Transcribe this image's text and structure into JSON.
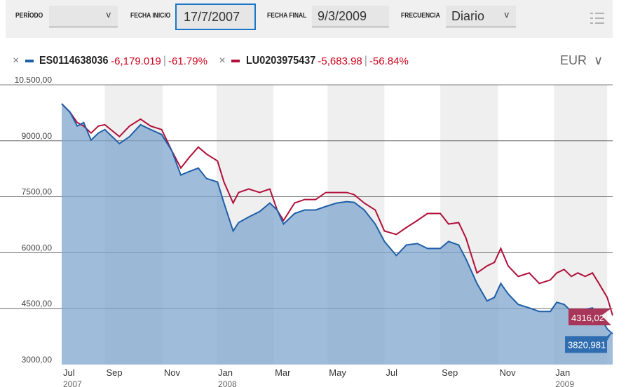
{
  "filters": {
    "periodo_label": "PERÍODO",
    "periodo_value": "",
    "fecha_inicio_label": "FECHA INICIO",
    "fecha_inicio_value": "17/7/2007",
    "fecha_final_label": "FECHA FINAL",
    "fecha_final_value": "9/3/2009",
    "frecuencia_label": "FRECUENCIA",
    "frecuencia_value": "Diario",
    "chevron": "v",
    "menu_icon": "list-icon"
  },
  "legend": [
    {
      "code": "ES0114638036",
      "change": "-6,179.019",
      "pct": "-61.79%",
      "color": "#1f5fa8"
    },
    {
      "code": "LU0203975437",
      "change": "-5,683.98",
      "pct": "-56.84%",
      "color": "#b0103a"
    }
  ],
  "legend_sep": "|",
  "remove": "×",
  "currency": {
    "value": "EUR",
    "chevron": "∨"
  },
  "chart_data": {
    "type": "line",
    "xlabel": "",
    "ylabel": "",
    "xlim": [
      0,
      601
    ],
    "ylim": [
      3000,
      10500
    ],
    "yticks": [
      {
        "v": 10500,
        "label": "10.500,00"
      },
      {
        "v": 9000,
        "label": "9000,00"
      },
      {
        "v": 7500,
        "label": "7500,00"
      },
      {
        "v": 6000,
        "label": "6000,00"
      },
      {
        "v": 4500,
        "label": "4500,00"
      },
      {
        "v": 3000,
        "label": "3000,00"
      }
    ],
    "xticks": [
      {
        "d": 0,
        "label": "Jul",
        "year": "2007"
      },
      {
        "d": 47,
        "label": "Sep"
      },
      {
        "d": 110,
        "label": "Nov"
      },
      {
        "d": 169,
        "label": "Jan",
        "year": "2008"
      },
      {
        "d": 231,
        "label": "Mar"
      },
      {
        "d": 290,
        "label": "May"
      },
      {
        "d": 352,
        "label": "Jul"
      },
      {
        "d": 413,
        "label": "Sep"
      },
      {
        "d": 476,
        "label": "Nov"
      },
      {
        "d": 537,
        "label": "Jan",
        "year": "2009"
      }
    ],
    "bands": [
      [
        47,
        110
      ],
      [
        169,
        231
      ],
      [
        290,
        352
      ],
      [
        413,
        476
      ],
      [
        537,
        595
      ]
    ],
    "x": [
      0,
      9,
      17,
      24,
      32,
      40,
      47,
      63,
      74,
      86,
      97,
      109,
      120,
      130,
      139,
      149,
      158,
      170,
      177,
      187,
      193,
      204,
      216,
      227,
      235,
      242,
      254,
      265,
      277,
      288,
      300,
      311,
      319,
      330,
      342,
      352,
      365,
      376,
      388,
      399,
      413,
      422,
      433,
      441,
      453,
      464,
      472,
      479,
      487,
      498,
      510,
      521,
      533,
      540,
      548,
      556,
      563,
      571,
      579,
      586,
      595,
      601
    ],
    "series": [
      {
        "name": "ES0114638036",
        "color": "#1f5fa8",
        "last_label": "3820,981",
        "values": [
          9994,
          9769,
          9394,
          9488,
          9019,
          9206,
          9300,
          8925,
          9113,
          9431,
          9300,
          9169,
          8738,
          8081,
          8175,
          8269,
          7988,
          7894,
          7331,
          6581,
          6806,
          6956,
          7106,
          7331,
          7144,
          6769,
          7050,
          7144,
          7144,
          7238,
          7331,
          7369,
          7350,
          7144,
          6769,
          6300,
          5925,
          6206,
          6244,
          6113,
          6113,
          6300,
          6206,
          5831,
          5175,
          4706,
          4800,
          5175,
          4894,
          4613,
          4519,
          4425,
          4425,
          4669,
          4613,
          4425,
          4369,
          4481,
          4519,
          4331,
          3956,
          3821
        ]
      },
      {
        "name": "LU0203975437",
        "color": "#b0103a",
        "last_label": "4316,02",
        "values": [
          9994,
          9769,
          9488,
          9394,
          9206,
          9394,
          9431,
          9113,
          9394,
          9581,
          9394,
          9300,
          8738,
          8269,
          8550,
          8831,
          8644,
          8456,
          7894,
          7331,
          7613,
          7706,
          7613,
          7706,
          7144,
          6863,
          7331,
          7425,
          7425,
          7613,
          7613,
          7613,
          7556,
          7331,
          7144,
          6581,
          6488,
          6675,
          6863,
          7050,
          7050,
          6769,
          6806,
          6394,
          5456,
          5644,
          5738,
          6113,
          5644,
          5363,
          5456,
          5175,
          5269,
          5456,
          5550,
          5363,
          5456,
          5363,
          5456,
          5175,
          4800,
          4316
        ]
      }
    ]
  }
}
